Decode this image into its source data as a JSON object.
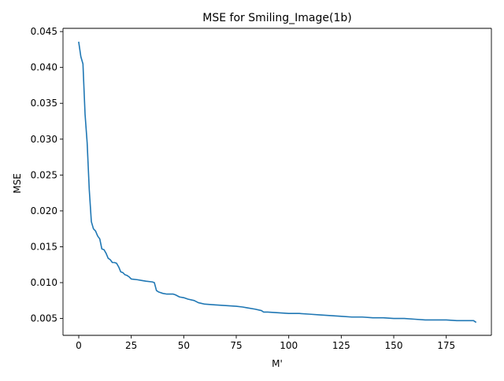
{
  "chart_data": {
    "type": "line",
    "title": "MSE for Smiling_Image(1b)",
    "xlabel": "M'",
    "ylabel": "MSE",
    "xlim": [
      -7.5,
      196.5
    ],
    "ylim": [
      0.00265,
      0.04545
    ],
    "xticks": [
      0,
      25,
      50,
      75,
      100,
      125,
      150,
      175
    ],
    "xtick_labels": [
      "0",
      "25",
      "50",
      "75",
      "100",
      "125",
      "150",
      "175"
    ],
    "yticks": [
      0.005,
      0.01,
      0.015,
      0.02,
      0.025,
      0.03,
      0.035,
      0.04,
      0.045
    ],
    "ytick_labels": [
      "0.005",
      "0.010",
      "0.015",
      "0.020",
      "0.025",
      "0.030",
      "0.035",
      "0.040",
      "0.045"
    ],
    "grid": false,
    "color": "#1f77b4",
    "series": [
      {
        "x": [
          0,
          1,
          2,
          3,
          4,
          5,
          6,
          7,
          8,
          9,
          10,
          11,
          12,
          13,
          14,
          15,
          16,
          17,
          18,
          19,
          20,
          21,
          22,
          23,
          24,
          25,
          28,
          30,
          32,
          35,
          36,
          37,
          38,
          39,
          40,
          42,
          45,
          46,
          48,
          50,
          52,
          55,
          57,
          60,
          65,
          70,
          75,
          78,
          80,
          84,
          87,
          88,
          90,
          95,
          100,
          105,
          110,
          115,
          120,
          125,
          130,
          135,
          140,
          145,
          150,
          155,
          160,
          165,
          170,
          175,
          180,
          185,
          188,
          189
        ],
        "y": [
          0.0435,
          0.0415,
          0.0405,
          0.0335,
          0.0295,
          0.023,
          0.0185,
          0.0175,
          0.0172,
          0.0165,
          0.0161,
          0.0147,
          0.0146,
          0.0141,
          0.0134,
          0.0132,
          0.0128,
          0.0128,
          0.0127,
          0.0122,
          0.0115,
          0.0114,
          0.0111,
          0.011,
          0.0108,
          0.0105,
          0.0104,
          0.0103,
          0.0102,
          0.0101,
          0.01,
          0.0089,
          0.0087,
          0.0086,
          0.0085,
          0.0084,
          0.0084,
          0.0083,
          0.008,
          0.0079,
          0.0077,
          0.0075,
          0.0072,
          0.007,
          0.0069,
          0.0068,
          0.0067,
          0.0066,
          0.0065,
          0.0063,
          0.0061,
          0.0059,
          0.0059,
          0.0058,
          0.0057,
          0.0057,
          0.0056,
          0.0055,
          0.0054,
          0.0053,
          0.0052,
          0.0052,
          0.0051,
          0.0051,
          0.005,
          0.005,
          0.0049,
          0.0048,
          0.0048,
          0.0048,
          0.0047,
          0.0047,
          0.0047,
          0.0045
        ]
      }
    ]
  }
}
